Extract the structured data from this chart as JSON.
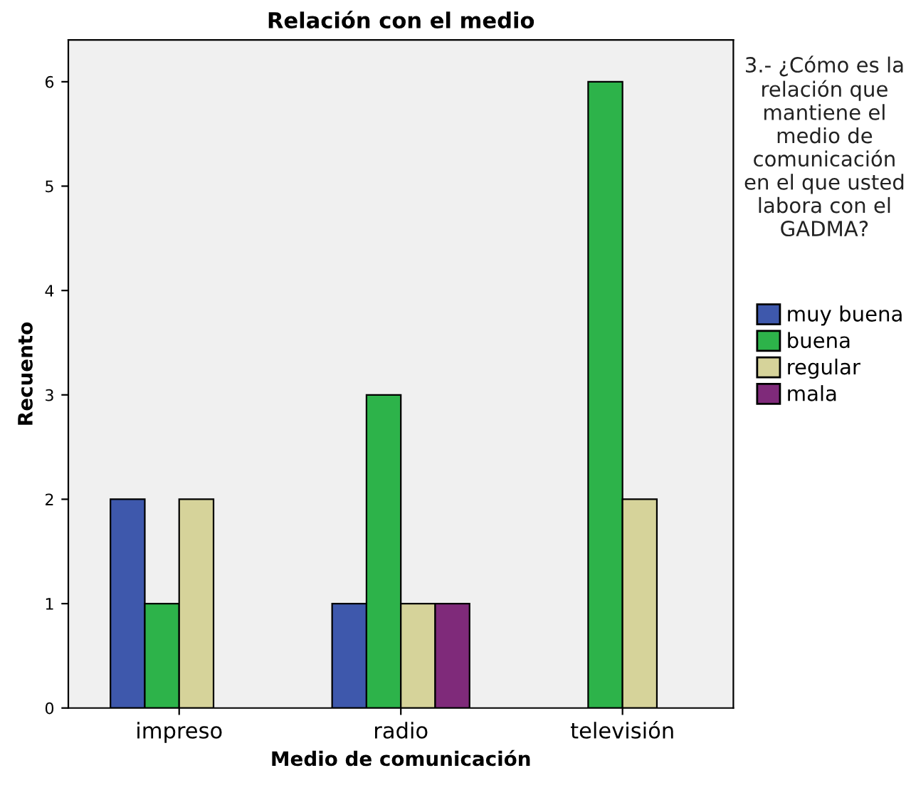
{
  "chart_data": {
    "type": "bar",
    "title": "Relación con el medio",
    "xlabel": "Medio de comunicación",
    "ylabel": "Recuento",
    "legend_title": "3.- ¿Cómo es la relación que mantiene el medio de comunicación en el que usted labora con el GADMA?",
    "categories": [
      "impreso",
      "radio",
      "televisión"
    ],
    "series": [
      {
        "name": "muy buena",
        "color": "#3e58ac",
        "values": [
          2,
          1,
          null
        ]
      },
      {
        "name": "buena",
        "color": "#2db34a",
        "values": [
          1,
          3,
          6
        ]
      },
      {
        "name": "regular",
        "color": "#d6d39a",
        "values": [
          2,
          1,
          2
        ]
      },
      {
        "name": "mala",
        "color": "#7f2a7a",
        "values": [
          null,
          1,
          null
        ]
      }
    ],
    "ylim": [
      0,
      6.4
    ],
    "yticks": [
      0,
      1,
      2,
      3,
      4,
      5,
      6
    ],
    "grid": false,
    "legend": "right"
  }
}
